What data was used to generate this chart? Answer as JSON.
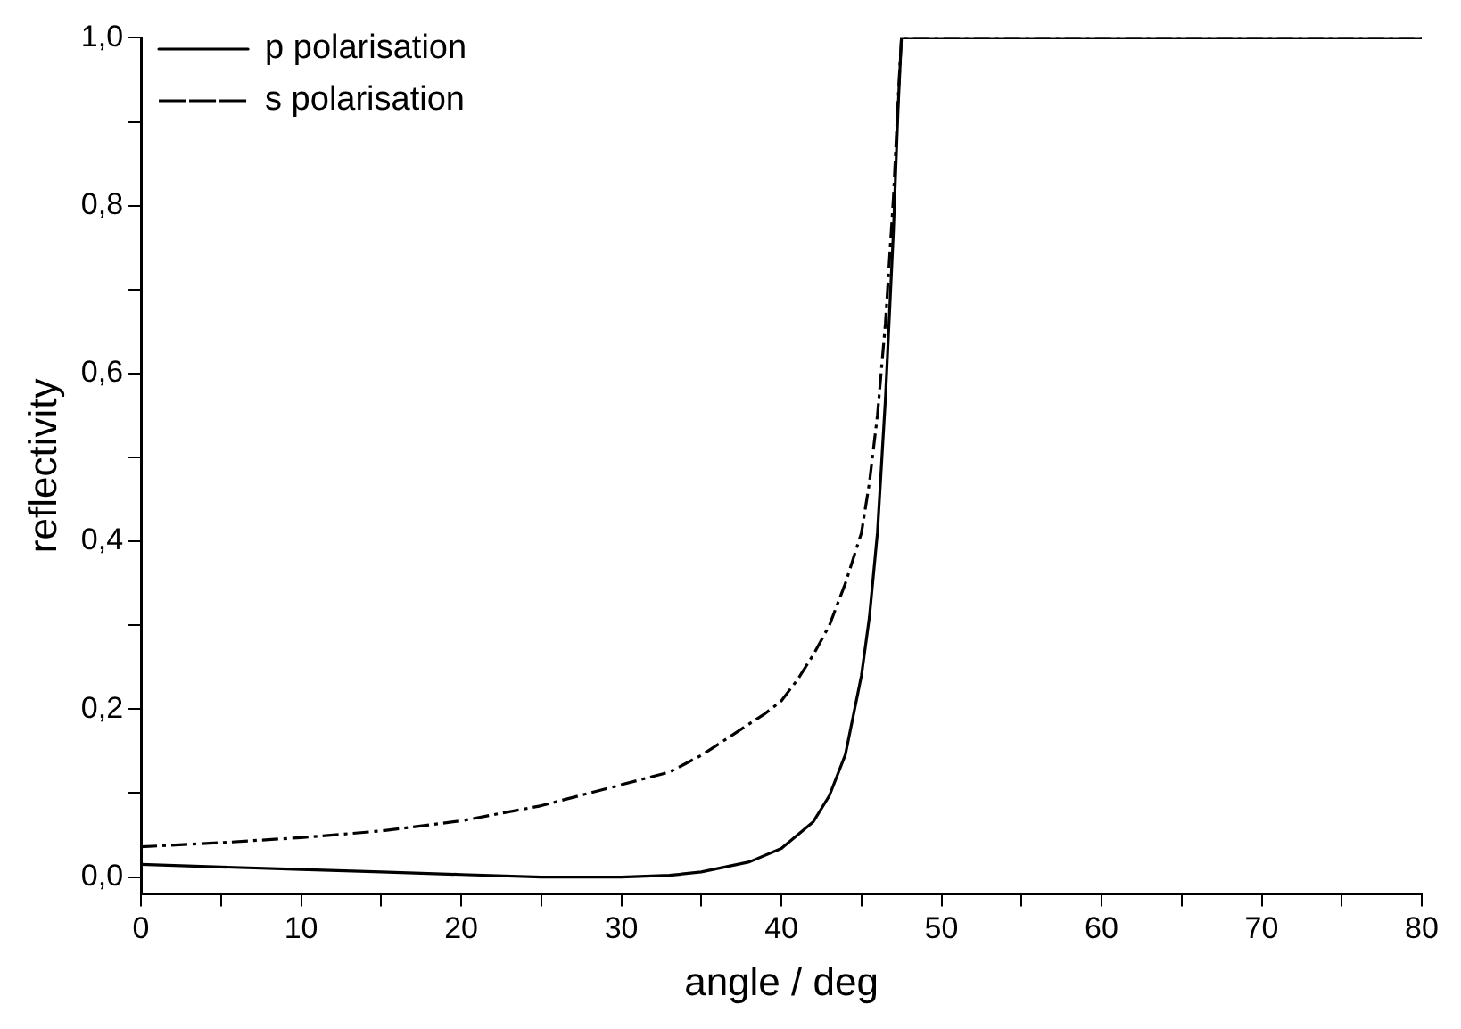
{
  "chart_data": {
    "type": "line",
    "xlabel": "angle / deg",
    "ylabel": "reflectivity",
    "xlim": [
      0,
      80
    ],
    "ylim": [
      -0.02,
      1.0
    ],
    "xticks": [
      0,
      {
        "value": 5,
        "label": null
      },
      10,
      {
        "value": 15,
        "label": null
      },
      20,
      {
        "value": 25,
        "label": null
      },
      30,
      {
        "value": 35,
        "label": null
      },
      40,
      {
        "value": 45,
        "label": null
      },
      50,
      {
        "value": 55,
        "label": null
      },
      60,
      {
        "value": 65,
        "label": null
      },
      70,
      {
        "value": 75,
        "label": null
      },
      80
    ],
    "yticks": [
      {
        "value": 0,
        "label": "0,0"
      },
      {
        "value": 0.1,
        "label": null
      },
      {
        "value": 0.2,
        "label": "0,2"
      },
      {
        "value": 0.3,
        "label": null
      },
      {
        "value": 0.4,
        "label": "0,4"
      },
      {
        "value": 0.5,
        "label": null
      },
      {
        "value": 0.6,
        "label": "0,6"
      },
      {
        "value": 0.7,
        "label": null
      },
      {
        "value": 0.8,
        "label": "0,8"
      },
      {
        "value": 0.9,
        "label": null
      },
      {
        "value": 1.0,
        "label": "1,0"
      }
    ],
    "grid": false,
    "legend": "top left",
    "marker": "none",
    "series": [
      {
        "name": "p polarisation",
        "color": "#000000",
        "line_style": "solid",
        "x": [
          0,
          5,
          10,
          15,
          20,
          25,
          30,
          33,
          35,
          38,
          40,
          42,
          43,
          44,
          45,
          45.5,
          46,
          46.5,
          47,
          47.3,
          47.5,
          50,
          60,
          70,
          80
        ],
        "values": [
          0.015,
          0.012,
          0.009,
          0.006,
          0.003,
          0.0,
          0.0,
          0.002,
          0.006,
          0.018,
          0.034,
          0.066,
          0.097,
          0.146,
          0.24,
          0.31,
          0.41,
          0.57,
          0.77,
          0.92,
          1.0,
          1.0,
          1.0,
          1.0,
          1.0
        ]
      },
      {
        "name": "s polarisation",
        "color": "#000000",
        "line_style": "dashdot",
        "x": [
          0,
          5,
          10,
          15,
          20,
          25,
          30,
          33,
          35,
          37,
          39,
          40,
          41,
          42,
          43,
          44,
          45,
          45.5,
          46,
          46.5,
          47,
          47.3,
          47.5,
          50,
          60,
          70,
          80
        ],
        "values": [
          0.036,
          0.041,
          0.047,
          0.055,
          0.067,
          0.085,
          0.11,
          0.125,
          0.145,
          0.17,
          0.195,
          0.21,
          0.235,
          0.265,
          0.3,
          0.35,
          0.41,
          0.47,
          0.55,
          0.66,
          0.81,
          0.93,
          1.0,
          1.0,
          1.0,
          1.0,
          1.0
        ]
      }
    ]
  }
}
